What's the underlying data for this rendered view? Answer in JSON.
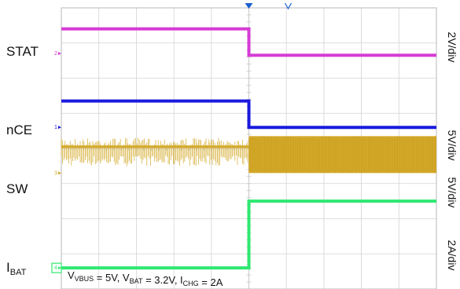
{
  "chart_data": {
    "type": "line",
    "title": "",
    "xlabel": "",
    "ylabel": "",
    "grid": true,
    "grid_divisions": {
      "x": 10,
      "y": 8
    },
    "x_range": [
      0,
      10
    ],
    "y_range": [
      0,
      8
    ],
    "trigger_division": 5,
    "annotation": {
      "parts": [
        {
          "t": "V",
          "sub": "VBUS"
        },
        {
          "t": " = 5V, V",
          "sub": "BAT"
        },
        {
          "t": " = 3.2V, I",
          "sub": "CHG"
        },
        {
          "t": " = 2A",
          "sub": ""
        }
      ]
    },
    "series": [
      {
        "name": "STAT",
        "label_main": "STAT",
        "label_sub": "",
        "color": "#d63bd6",
        "scale": "2V/div",
        "marker": "2",
        "ground_level": 6.7,
        "x": [
          0,
          5,
          5,
          10
        ],
        "y": [
          7.4,
          7.4,
          6.65,
          6.65
        ]
      },
      {
        "name": "nCE",
        "label_main": "nCE",
        "label_sub": "",
        "color": "#1a1adf",
        "scale": "5V/div",
        "marker": "1",
        "ground_level": 4.6,
        "x": [
          0,
          5,
          5,
          10
        ],
        "y": [
          5.35,
          5.35,
          4.6,
          4.6
        ]
      },
      {
        "name": "SW",
        "label_main": "SW",
        "label_sub": "",
        "color": "#d4aa2a",
        "scale": "5V/div",
        "marker": "3",
        "ground_level": 3.3,
        "switching": {
          "before_trigger": {
            "low": 3.5,
            "high": 4.3,
            "dominant": 4.05
          },
          "after_trigger": {
            "low": 3.3,
            "high": 4.35
          }
        }
      },
      {
        "name": "IBAT",
        "label_main": "I",
        "label_sub": "BAT",
        "color": "#2fe870",
        "scale": "2A/div",
        "marker": "4",
        "ground_level": 0.6,
        "x": [
          0,
          5,
          5,
          10
        ],
        "y": [
          0.6,
          0.6,
          2.5,
          2.5
        ]
      }
    ]
  }
}
